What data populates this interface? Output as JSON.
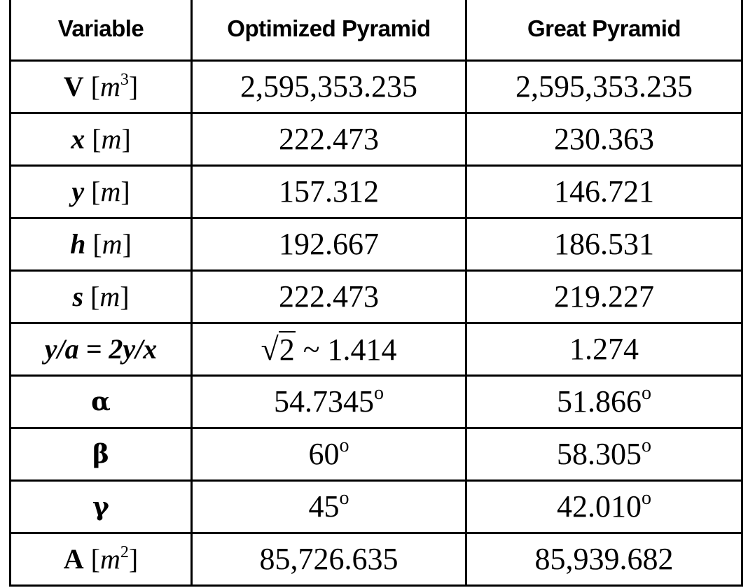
{
  "table": {
    "headers": [
      "Variable",
      "Optimized Pyramid",
      "Great Pyramid"
    ],
    "rows": [
      {
        "symbol": "V",
        "unit_base": "m",
        "unit_exp": "3",
        "optimized": "2,595,353.235",
        "great": "2,595,353.235"
      },
      {
        "symbol": "x",
        "unit_base": "m",
        "optimized": "222.473",
        "great": "230.363"
      },
      {
        "symbol": "y",
        "unit_base": "m",
        "optimized": "157.312",
        "great": "146.721"
      },
      {
        "symbol": "h",
        "unit_base": "m",
        "optimized": "192.667",
        "great": "186.531"
      },
      {
        "symbol": "s",
        "unit_base": "m",
        "optimized": "222.473",
        "great": "219.227"
      },
      {
        "symbol": "y/a = 2y/x",
        "optimized_radicand": "2",
        "optimized": "~ 1.414",
        "great": "1.274"
      },
      {
        "symbol": "α",
        "optimized": "54.7345",
        "great": "51.866",
        "degree_mark": "o"
      },
      {
        "symbol": "β",
        "optimized": "60",
        "great": "58.305",
        "degree_mark": "o"
      },
      {
        "symbol": "γ",
        "optimized": "45",
        "great": "42.010",
        "degree_mark": "o"
      },
      {
        "symbol": "A",
        "unit_base": "m",
        "unit_exp": "2",
        "optimized": "85,726.635",
        "great": "85,939.682"
      }
    ],
    "radical_sign": "√",
    "unit_open": "[",
    "unit_close": "]"
  }
}
